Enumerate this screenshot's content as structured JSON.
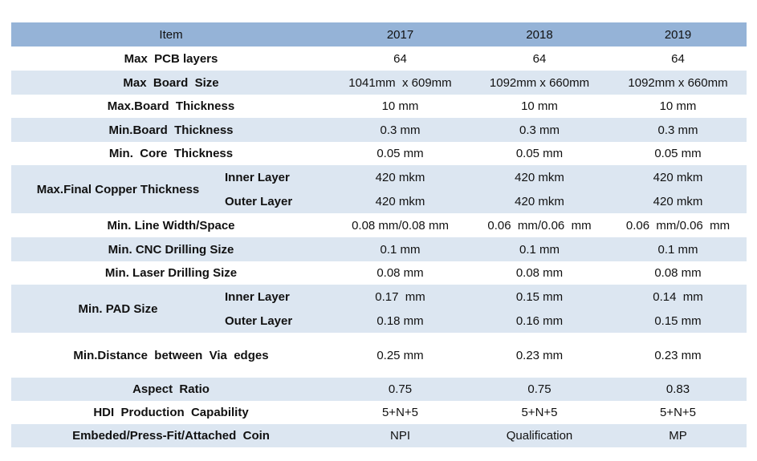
{
  "table": {
    "header": [
      "Item",
      "2017",
      "2018",
      "2019"
    ],
    "rows": [
      {
        "label": "Max  PCB layers",
        "values": [
          "64",
          "64",
          "64"
        ]
      },
      {
        "label": "Max  Board  Size",
        "values": [
          "1041mm  x 609mm",
          "1092mm x 660mm",
          "1092mm x 660mm"
        ]
      },
      {
        "label": "Max.Board  Thickness",
        "values": [
          "10 mm",
          "10 mm",
          "10 mm"
        ]
      },
      {
        "label": "Min.Board  Thickness",
        "values": [
          "0.3 mm",
          "0.3 mm",
          "0.3 mm"
        ]
      },
      {
        "label": "Min.  Core  Thickness",
        "values": [
          "0.05 mm",
          "0.05 mm",
          "0.05 mm"
        ]
      },
      {
        "label": "Max.Final Copper Thickness",
        "sub": [
          {
            "label": "Inner Layer",
            "values": [
              "420 mkm",
              "420 mkm",
              "420 mkm"
            ]
          },
          {
            "label": "Outer Layer",
            "values": [
              "420 mkm",
              "420 mkm",
              "420 mkm"
            ]
          }
        ]
      },
      {
        "label": "Min. Line Width/Space",
        "values": [
          "0.08 mm/0.08 mm",
          "0.06  mm/0.06  mm",
          "0.06  mm/0.06  mm"
        ]
      },
      {
        "label": "Min. CNC Drilling Size",
        "values": [
          "0.1 mm",
          "0.1 mm",
          "0.1 mm"
        ]
      },
      {
        "label": "Min. Laser Drilling Size",
        "values": [
          "0.08 mm",
          "0.08 mm",
          "0.08 mm"
        ]
      },
      {
        "label": "Min. PAD Size",
        "sub": [
          {
            "label": "Inner Layer",
            "values": [
              "0.17  mm",
              "0.15 mm",
              "0.14  mm"
            ]
          },
          {
            "label": "Outer Layer",
            "values": [
              "0.18 mm",
              "0.16 mm",
              "0.15 mm"
            ]
          }
        ]
      },
      {
        "label": "Min.Distance  between  Via  edges",
        "values": [
          "0.25 mm",
          "0.23 mm",
          "0.23 mm"
        ]
      },
      {
        "label": "Aspect  Ratio",
        "values": [
          "0.75",
          "0.75",
          "0.83"
        ]
      },
      {
        "label": "HDI  Production  Capability",
        "values": [
          "5+N+5",
          "5+N+5",
          "5+N+5"
        ]
      },
      {
        "label": "Embeded/Press-Fit/Attached  Coin",
        "values": [
          "NPI",
          "Qualification",
          "MP"
        ]
      }
    ]
  }
}
